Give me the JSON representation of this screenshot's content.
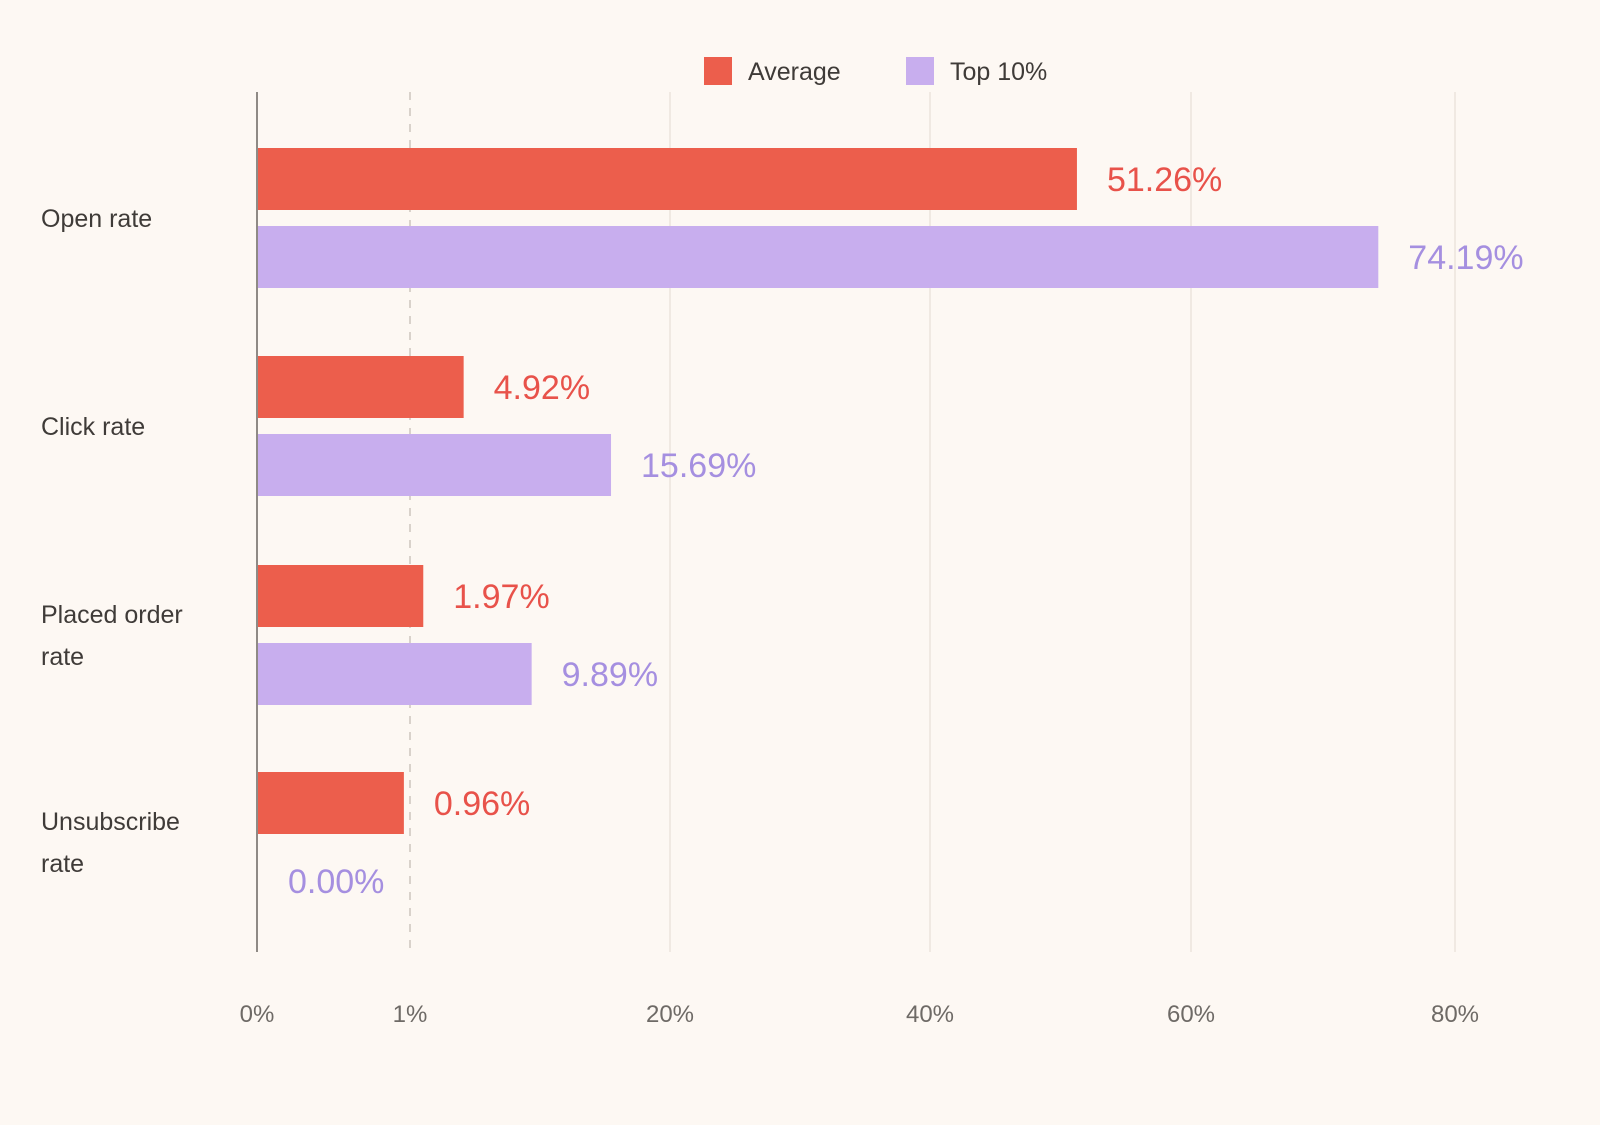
{
  "chart_data": {
    "type": "bar",
    "orientation": "horizontal",
    "categories": [
      "Open rate",
      "Click rate",
      "Placed order rate",
      "Unsubscribe rate"
    ],
    "category_lines": [
      [
        "Open rate"
      ],
      [
        "Click rate"
      ],
      [
        "Placed order",
        "rate"
      ],
      [
        "Unsubscribe",
        "rate"
      ]
    ],
    "series": [
      {
        "name": "Average",
        "color": "#ec5e4c",
        "label_color": "#e8524a",
        "values": [
          51.26,
          4.92,
          1.97,
          0.96
        ],
        "labels": [
          "51.26%",
          "4.92%",
          "1.97%",
          "0.96%"
        ]
      },
      {
        "name": "Top 10%",
        "color": "#c8aeee",
        "label_color": "#a58fe0",
        "values": [
          74.19,
          15.69,
          9.89,
          0.0
        ],
        "labels": [
          "74.19%",
          "15.69%",
          "9.89%",
          "0.00%"
        ]
      }
    ],
    "x_scale": "piecewise-linear",
    "x_ticks": [
      {
        "value": 0,
        "label": "0%"
      },
      {
        "value": 1,
        "label": "1%"
      },
      {
        "value": 20,
        "label": "20%"
      },
      {
        "value": 40,
        "label": "40%"
      },
      {
        "value": 60,
        "label": "60%"
      },
      {
        "value": 80,
        "label": "80%"
      }
    ],
    "xlim": [
      0,
      80
    ],
    "grid": true,
    "legend": "top-center",
    "title": "",
    "xlabel": "",
    "ylabel": ""
  }
}
